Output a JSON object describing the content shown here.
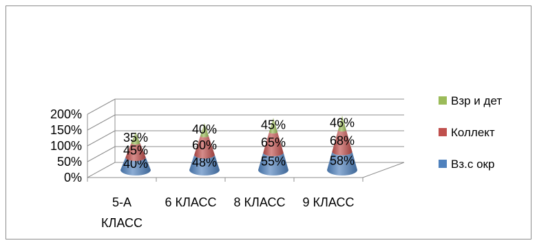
{
  "chart_data": {
    "type": "bar",
    "subtype": "stacked-cone-3d",
    "categories": [
      "5-А КЛАСС",
      "6 КЛАСС",
      "8 КЛАСС",
      "9 КЛАСС"
    ],
    "series": [
      {
        "name": "Вз.с окр",
        "values": [
          40,
          48,
          55,
          58
        ],
        "color": "#4f81bd"
      },
      {
        "name": "Коллект",
        "values": [
          45,
          60,
          65,
          68
        ],
        "color": "#c0504d"
      },
      {
        "name": "Взр и дет",
        "values": [
          35,
          40,
          45,
          46
        ],
        "color": "#9bbb59"
      }
    ],
    "value_format": "percent",
    "ylim": [
      0,
      200
    ],
    "yticks": [
      "0%",
      "50%",
      "100%",
      "150%",
      "200%"
    ],
    "grid": true,
    "legend_position": "right",
    "legend_order": [
      "Взр и дет",
      "Коллект",
      "Вз.с окр"
    ],
    "title": "",
    "xlabel": "",
    "ylabel": ""
  }
}
